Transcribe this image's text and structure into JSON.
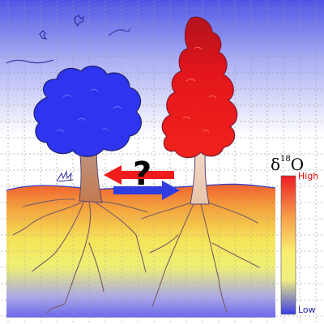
{
  "scale": {
    "title_symbol": "δ",
    "title_superscript": "18",
    "title_element": "O",
    "high_label": "High",
    "low_label": "Low"
  },
  "exchange_question": "?",
  "colors": {
    "isotope_high": "#f01b1b",
    "isotope_low": "#2f3de0",
    "mid_yellow": "#f7ee56",
    "mid_orange": "#f4a53a",
    "trunk": "#c08a6a",
    "trunk_light": "#f1d7c1",
    "root_line": "#7a5b63",
    "grid_dot": "#9a9aa0"
  },
  "icons": {
    "blue_tree": "tree-canopy-icon",
    "red_tree": "tree-canopy-icon",
    "arrows": "bidirectional-arrow-icon",
    "birds": "bird-icon",
    "grass": "grass-tuft-icon"
  }
}
